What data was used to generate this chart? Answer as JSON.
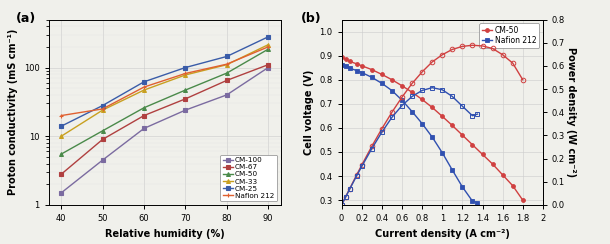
{
  "panel_a": {
    "xlabel": "Relative humidity (%)",
    "ylabel": "Proton conductivity (mS cm⁻¹)",
    "x": [
      40,
      50,
      60,
      70,
      80,
      90
    ],
    "series": {
      "CM-100": {
        "color": "#7b6ba0",
        "values": [
          1.5,
          4.5,
          13,
          24,
          40,
          100
        ]
      },
      "CM-67": {
        "color": "#b04040",
        "values": [
          2.8,
          9.0,
          20,
          35,
          65,
          110
        ]
      },
      "CM-50": {
        "color": "#4a8a4a",
        "values": [
          5.5,
          12,
          26,
          47,
          83,
          185
        ]
      },
      "CM-33": {
        "color": "#c8a020",
        "values": [
          10,
          24,
          47,
          78,
          110,
          215
        ]
      },
      "CM-25": {
        "color": "#3a5ca8",
        "values": [
          14,
          28,
          62,
          100,
          145,
          280
        ]
      },
      "Nafion 212": {
        "color": "#e06030",
        "values": [
          20,
          25,
          52,
          82,
          112,
          200
        ]
      }
    },
    "ylim": [
      1,
      500
    ],
    "yticks": [
      1,
      10,
      100
    ],
    "xlim": [
      37,
      93
    ],
    "xticks": [
      40,
      50,
      60,
      70,
      80,
      90
    ]
  },
  "panel_b": {
    "xlabel": "Current density (A cm⁻²)",
    "ylabel_left": "Cell voltage (V)",
    "ylabel_right": "Power density (W cm⁻²)",
    "cm50_voltage_x": [
      0.0,
      0.04,
      0.08,
      0.15,
      0.2,
      0.3,
      0.4,
      0.5,
      0.6,
      0.7,
      0.8,
      0.9,
      1.0,
      1.1,
      1.2,
      1.3,
      1.4,
      1.5,
      1.6,
      1.7,
      1.8
    ],
    "cm50_voltage_y": [
      0.895,
      0.885,
      0.876,
      0.866,
      0.858,
      0.842,
      0.822,
      0.8,
      0.775,
      0.748,
      0.718,
      0.685,
      0.648,
      0.61,
      0.57,
      0.53,
      0.49,
      0.45,
      0.405,
      0.36,
      0.3
    ],
    "cm50_power_x": [
      0.0,
      0.04,
      0.08,
      0.15,
      0.2,
      0.3,
      0.4,
      0.5,
      0.6,
      0.7,
      0.8,
      0.9,
      1.0,
      1.1,
      1.2,
      1.3,
      1.4,
      1.5,
      1.6,
      1.7,
      1.8
    ],
    "cm50_power_y": [
      0.0,
      0.035,
      0.07,
      0.13,
      0.172,
      0.253,
      0.329,
      0.4,
      0.465,
      0.524,
      0.574,
      0.617,
      0.648,
      0.671,
      0.684,
      0.689,
      0.686,
      0.675,
      0.648,
      0.612,
      0.54
    ],
    "nafion_voltage_x": [
      0.0,
      0.04,
      0.08,
      0.15,
      0.2,
      0.3,
      0.4,
      0.5,
      0.6,
      0.7,
      0.8,
      0.9,
      1.0,
      1.1,
      1.2,
      1.3,
      1.35
    ],
    "nafion_voltage_y": [
      0.862,
      0.856,
      0.848,
      0.838,
      0.83,
      0.81,
      0.785,
      0.755,
      0.715,
      0.668,
      0.618,
      0.562,
      0.497,
      0.425,
      0.355,
      0.296,
      0.29
    ],
    "nafion_power_x": [
      0.0,
      0.04,
      0.08,
      0.15,
      0.2,
      0.3,
      0.4,
      0.5,
      0.6,
      0.7,
      0.8,
      0.9,
      1.0,
      1.1,
      1.2,
      1.3,
      1.35
    ],
    "nafion_power_y": [
      0.0,
      0.034,
      0.068,
      0.126,
      0.166,
      0.243,
      0.314,
      0.378,
      0.429,
      0.468,
      0.494,
      0.506,
      0.497,
      0.468,
      0.426,
      0.385,
      0.392
    ],
    "xlim": [
      0.0,
      2.0
    ],
    "ylim_left": [
      0.28,
      1.05
    ],
    "ylim_right": [
      0.0,
      0.8
    ],
    "xticks": [
      0.0,
      0.2,
      0.4,
      0.6,
      0.8,
      1.0,
      1.2,
      1.4,
      1.6,
      1.8,
      2.0
    ],
    "yticks_left": [
      0.3,
      0.4,
      0.5,
      0.6,
      0.7,
      0.8,
      0.9,
      1.0
    ],
    "yticks_right": [
      0.0,
      0.1,
      0.2,
      0.3,
      0.4,
      0.5,
      0.6,
      0.7,
      0.8
    ],
    "cm50_color": "#d04040",
    "nafion_color": "#3050b0"
  },
  "bg_color": "#f0f0eb",
  "label_fontsize": 7,
  "tick_fontsize": 6,
  "linewidth": 1.0,
  "markersize": 2.8
}
